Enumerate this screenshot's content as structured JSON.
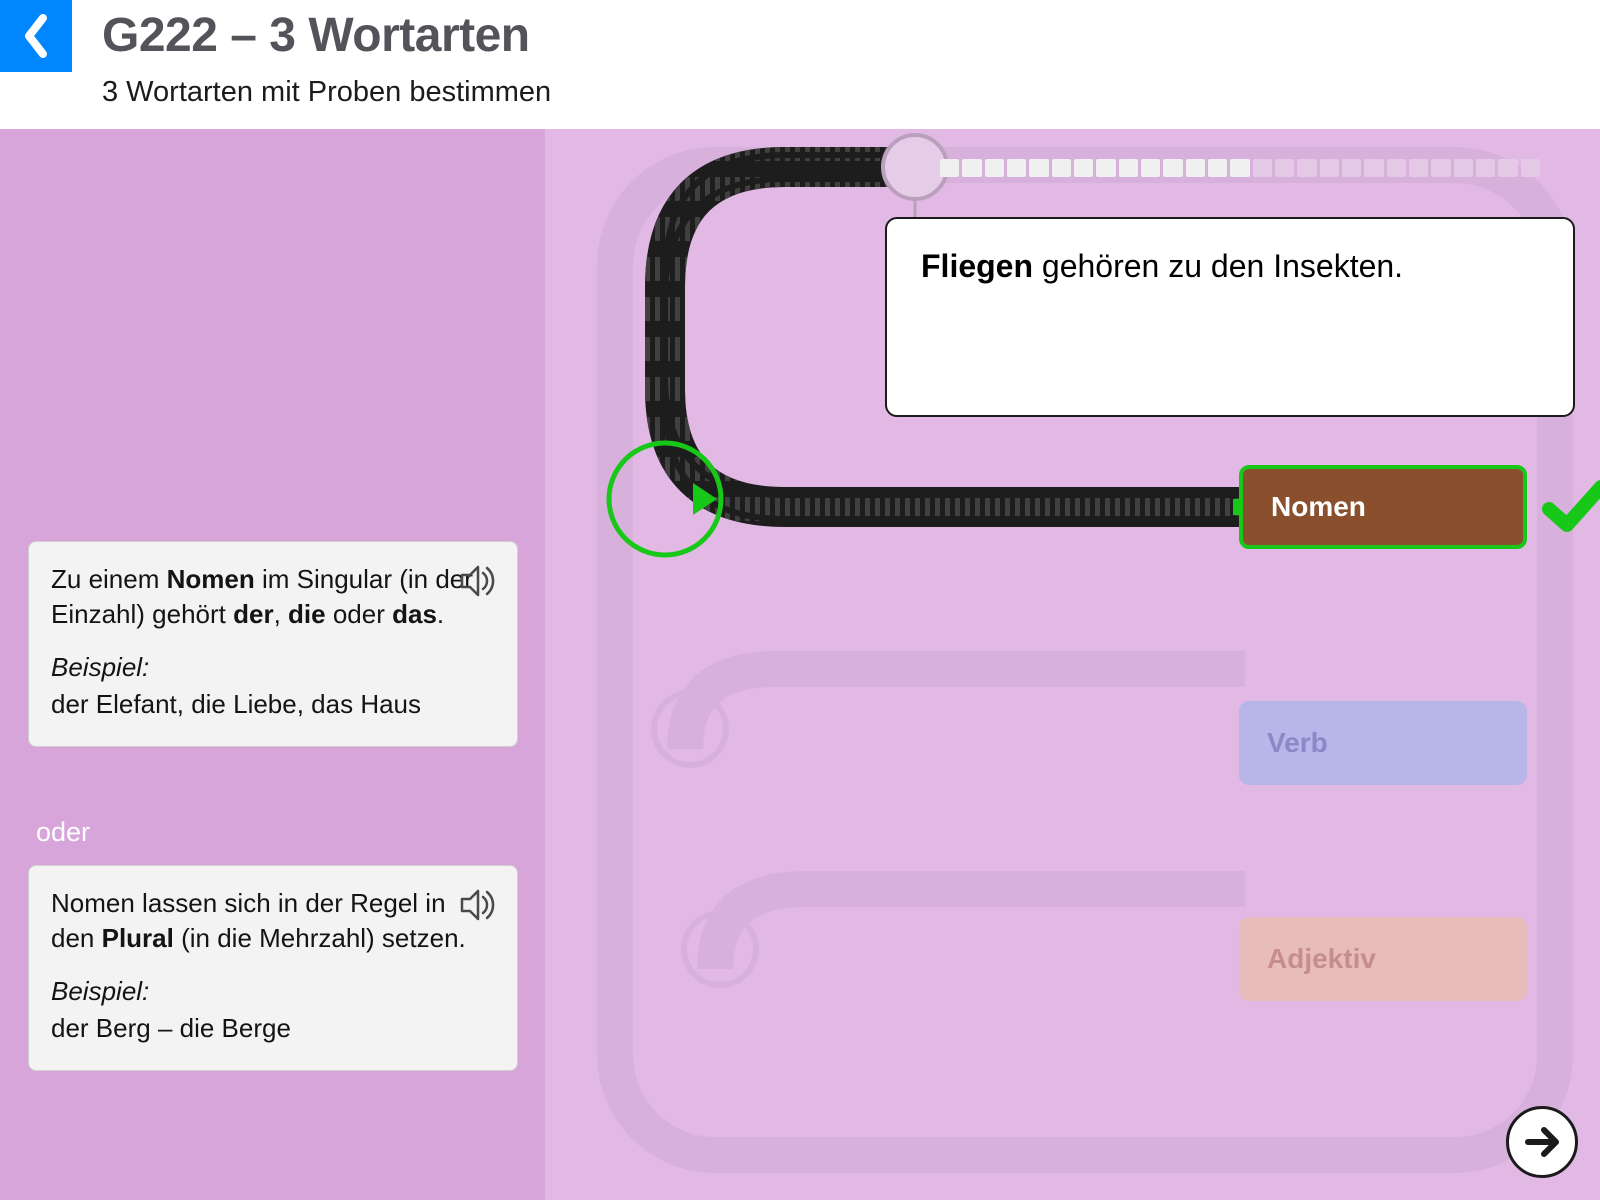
{
  "header": {
    "title": "G222 – 3 Wortarten",
    "subtitle": "3 Wortarten mit Proben bestimmen"
  },
  "hints": {
    "card1": {
      "line1a": "Zu einem ",
      "line1b": "Nomen",
      "line1c": " im Singular (in der Einzahl) gehört ",
      "line1d": "der",
      "line1e": ", ",
      "line1f": "die",
      "line1g": " oder ",
      "line1h": "das",
      "line1i": ".",
      "example_label": "Beispiel:",
      "example": "der Elefant, die Liebe, das Haus"
    },
    "separator": "oder",
    "card2": {
      "line1a": "Nomen lassen sich in der Regel in den ",
      "line1b": "Plural",
      "line1c": " (in die Mehrzahl) setzen.",
      "example_label": "Beispiel:",
      "example": "der Berg – die Berge"
    }
  },
  "question": {
    "bold": "Fliegen",
    "rest": " gehören zu den Insekten."
  },
  "answers": {
    "nomen": "Nomen",
    "verb": "Verb",
    "adjektiv": "Adjektiv"
  },
  "progress": {
    "total": 27,
    "done_color": "#f0f0f0",
    "pending_color": "#e3c9e6"
  },
  "colors": {
    "header_bg": "#ffffff",
    "left_bg": "#d8a5db",
    "right_bg": "#e1b9e4",
    "back_blue": "#0086ff",
    "correct_green": "#18c818"
  }
}
